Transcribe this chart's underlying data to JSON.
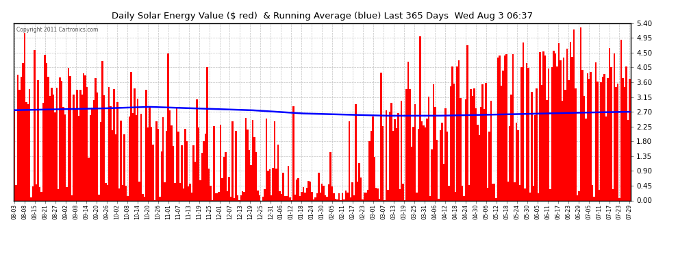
{
  "title": "Daily Solar Energy Value ($ red)  & Running Average (blue) Last 365 Days  Wed Aug 3 06:37",
  "copyright": "Copyright 2011 Cartronics.com",
  "bar_color": "#FF0000",
  "line_color": "#0000FF",
  "background_color": "#FFFFFF",
  "grid_color": "#BBBBBB",
  "yticks": [
    0.0,
    0.45,
    0.9,
    1.35,
    1.8,
    2.25,
    2.7,
    3.15,
    3.6,
    4.05,
    4.5,
    4.95,
    5.4
  ],
  "ymax": 5.4,
  "xtick_labels": [
    "08-03",
    "08-08",
    "08-15",
    "08-21",
    "08-27",
    "09-02",
    "09-08",
    "09-14",
    "09-20",
    "09-26",
    "10-02",
    "10-08",
    "10-14",
    "10-20",
    "10-26",
    "11-01",
    "11-07",
    "11-13",
    "11-19",
    "11-25",
    "12-01",
    "12-07",
    "12-13",
    "12-19",
    "12-25",
    "12-31",
    "01-06",
    "01-12",
    "01-18",
    "01-24",
    "01-30",
    "02-05",
    "02-11",
    "02-17",
    "02-23",
    "03-01",
    "03-07",
    "03-13",
    "03-19",
    "03-25",
    "03-31",
    "04-06",
    "04-12",
    "04-18",
    "04-24",
    "04-30",
    "05-06",
    "05-12",
    "05-18",
    "05-24",
    "05-30",
    "06-05",
    "06-11",
    "06-17",
    "06-23",
    "06-29",
    "07-05",
    "07-11",
    "07-17",
    "07-23",
    "07-29"
  ]
}
